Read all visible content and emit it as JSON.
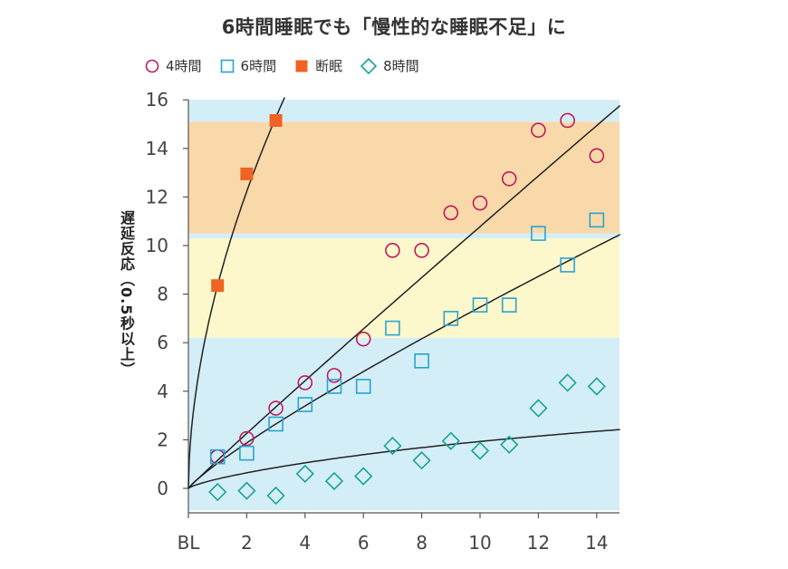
{
  "chart_data": {
    "type": "scatter",
    "title": "6時間睡眠でも「慢性的な睡眠不足」に",
    "ylabel": "遅延反応（0.5秒以上）",
    "xlabel": "",
    "xlim": [
      0,
      14.8
    ],
    "ylim": [
      -0.9,
      16
    ],
    "x_ticks": [
      {
        "value": 0,
        "label": "BL"
      },
      {
        "value": 2,
        "label": "2"
      },
      {
        "value": 4,
        "label": "4"
      },
      {
        "value": 6,
        "label": "6"
      },
      {
        "value": 8,
        "label": "8"
      },
      {
        "value": 10,
        "label": "10"
      },
      {
        "value": 12,
        "label": "12"
      },
      {
        "value": 14,
        "label": "14"
      }
    ],
    "y_ticks": [
      0,
      2,
      4,
      6,
      8,
      10,
      12,
      14,
      16
    ],
    "bands": [
      {
        "from": -0.9,
        "to": 6.2,
        "color": "#d4eef8"
      },
      {
        "from": 6.2,
        "to": 10.3,
        "color": "#fdf8cc"
      },
      {
        "from": 10.3,
        "to": 10.5,
        "color": "#d4eef8"
      },
      {
        "from": 10.5,
        "to": 15.1,
        "color": "#f9d9a9"
      },
      {
        "from": 15.1,
        "to": 16,
        "color": "#d4eef8"
      }
    ],
    "series": [
      {
        "name": "4時間",
        "marker": "circle",
        "color": "#c2185b",
        "x": [
          1,
          2,
          3,
          4,
          5,
          6,
          7,
          8,
          9,
          10,
          11,
          12,
          13,
          14
        ],
        "y": [
          1.3,
          2.05,
          3.3,
          4.35,
          4.65,
          6.15,
          9.8,
          9.8,
          11.35,
          11.75,
          12.75,
          14.75,
          15.15,
          13.7
        ],
        "curve": {
          "a": 1.155,
          "b": 0.97
        }
      },
      {
        "name": "6時間",
        "marker": "square",
        "color": "#29a3d1",
        "x": [
          1,
          2,
          3,
          4,
          5,
          6,
          7,
          8,
          9,
          10,
          11,
          12,
          13,
          14
        ],
        "y": [
          1.3,
          1.45,
          2.65,
          3.45,
          4.2,
          4.2,
          6.6,
          5.25,
          7.0,
          7.55,
          7.55,
          10.5,
          9.2,
          11.05
        ],
        "curve": {
          "a": 1.03,
          "b": 0.86
        }
      },
      {
        "name": "断眠",
        "marker": "filled-square",
        "color": "#f06322",
        "x": [
          1,
          2,
          3
        ],
        "y": [
          8.35,
          12.95,
          15.15
        ],
        "curve": {
          "a": 8.35,
          "b": 0.55,
          "xmax": 3.3
        }
      },
      {
        "name": "8時間",
        "marker": "diamond",
        "color": "#1aa294",
        "x": [
          1,
          2,
          3,
          4,
          5,
          6,
          7,
          8,
          9,
          10,
          11,
          12,
          13,
          14
        ],
        "y": [
          -0.15,
          -0.1,
          -0.3,
          0.6,
          0.3,
          0.5,
          1.75,
          1.15,
          1.95,
          1.55,
          1.8,
          3.3,
          4.35,
          4.2
        ],
        "curve": {
          "a": 0.39,
          "b": 0.75
        }
      }
    ]
  }
}
